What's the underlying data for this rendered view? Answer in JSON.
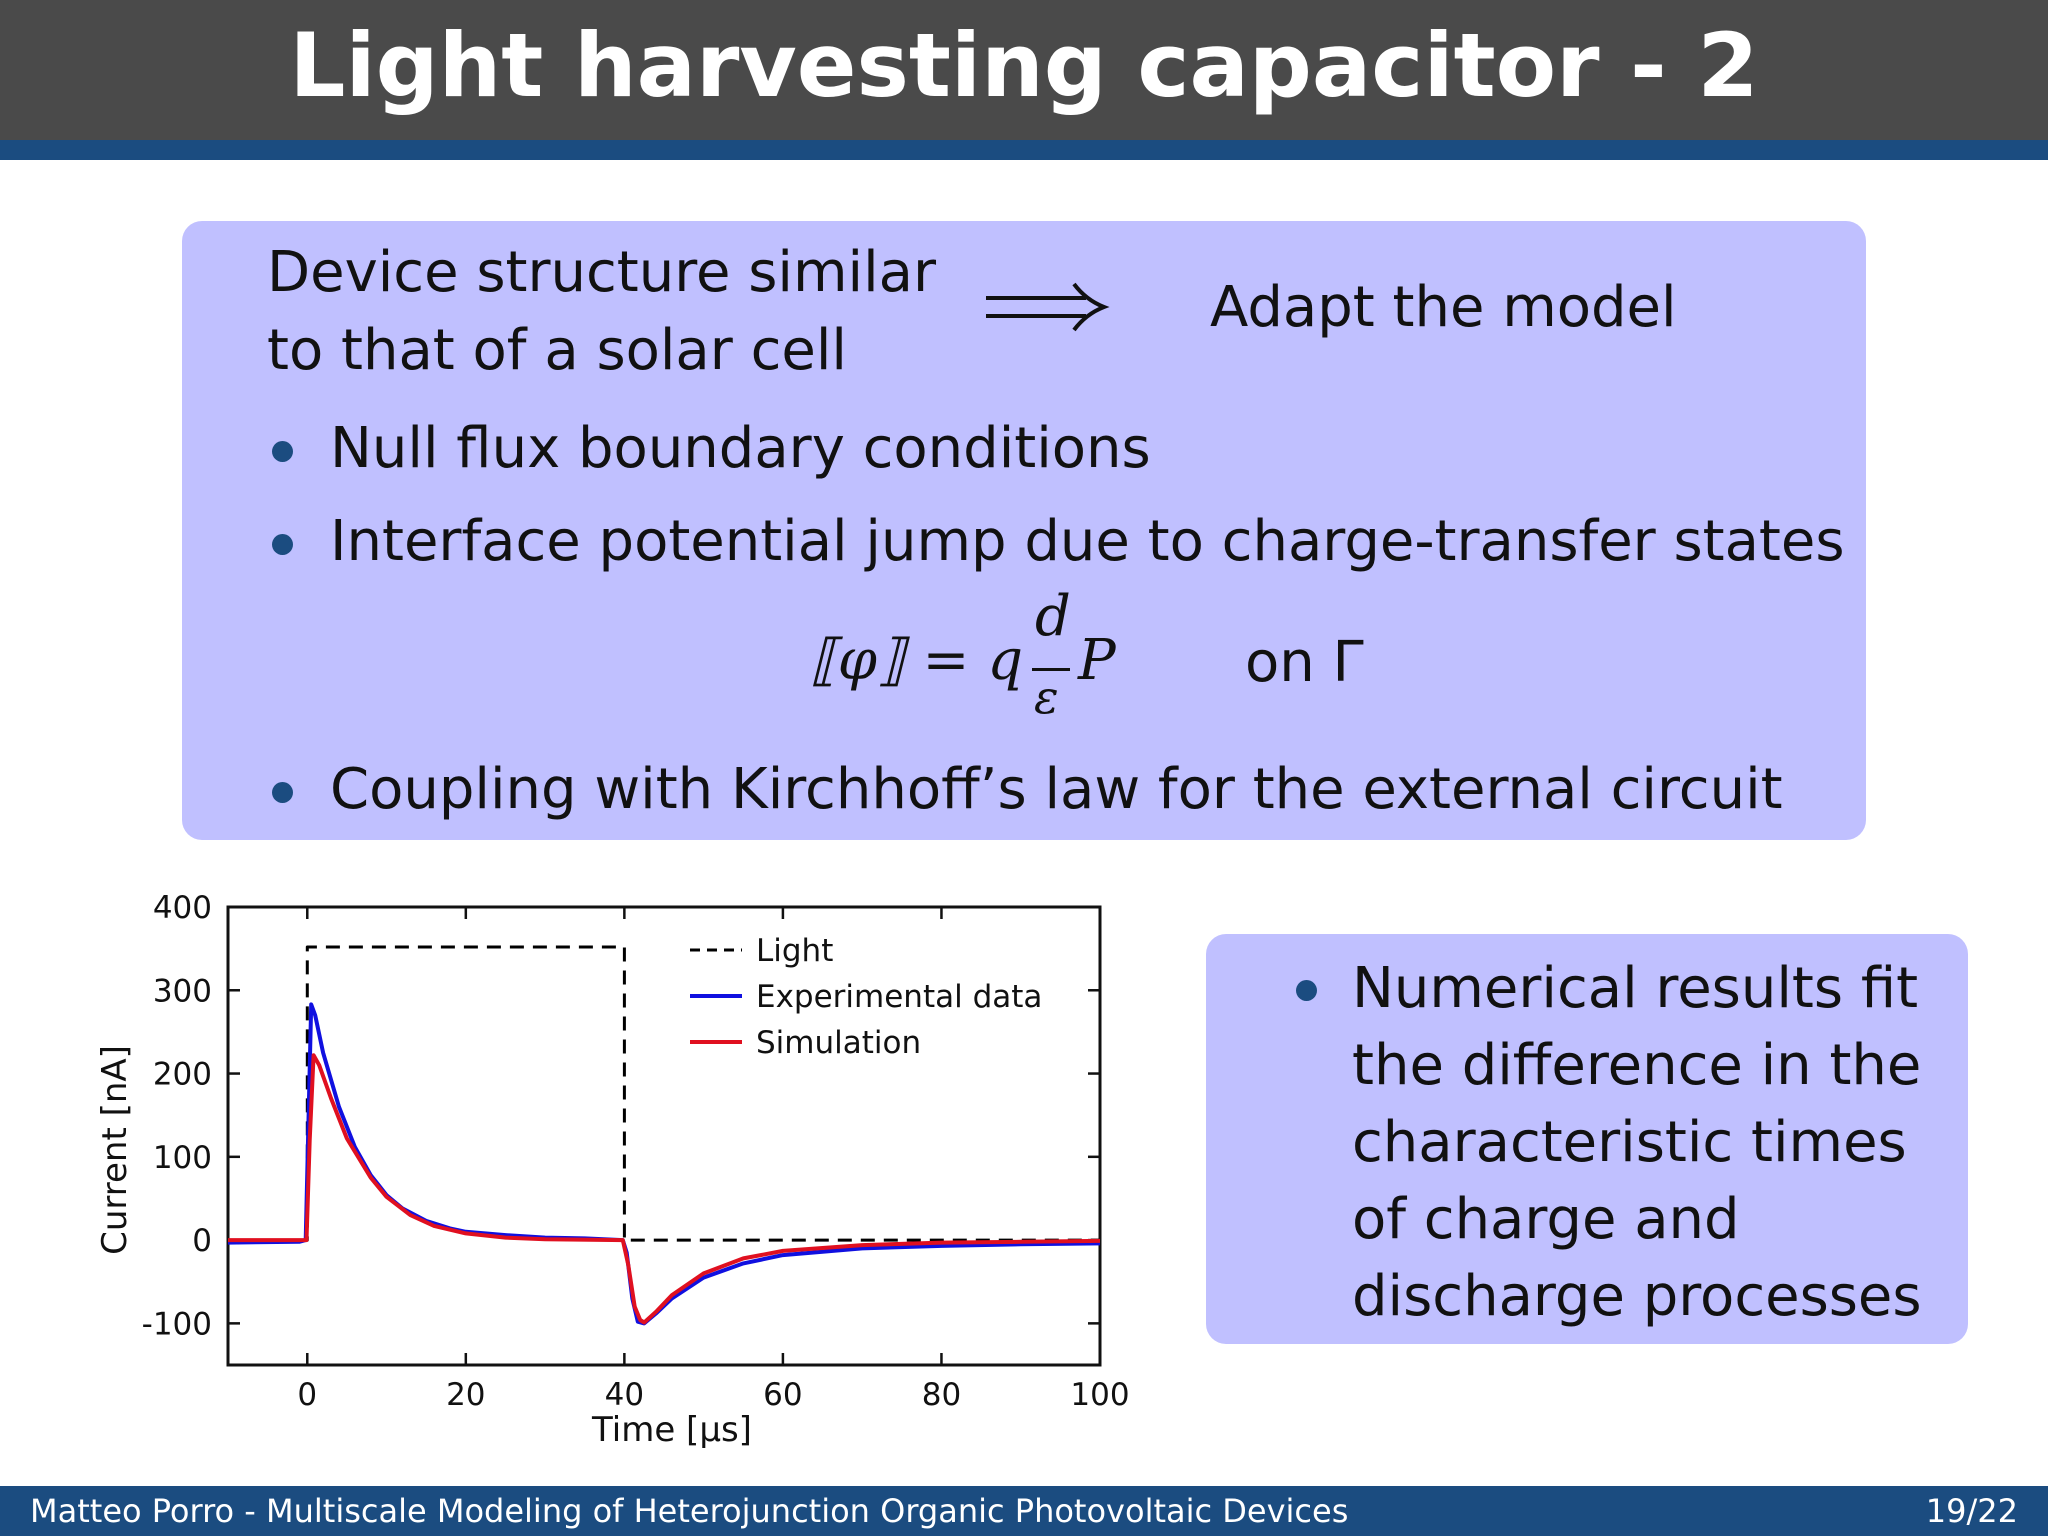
{
  "slide": {
    "title": "Light harvesting capacitor - 2"
  },
  "main_block": {
    "intro_line1": "Device structure similar",
    "intro_line2": "to that of a solar cell",
    "implication": "Adapt the model",
    "bullets": [
      "Null flux boundary conditions",
      "Interface potential jump due to charge-transfer states",
      "Coupling with Kirchhoff’s law for the external circuit"
    ],
    "formula": {
      "lhs": "⟦φ⟧ = q",
      "numerator": "d",
      "denominator": "ε",
      "variable": "P",
      "condition": "on Γ"
    }
  },
  "side_block": {
    "bullet": "Numerical results fit the difference in the characteristic times of charge and discharge processes"
  },
  "chart_data": {
    "type": "line",
    "xlabel": "Time [µs]",
    "ylabel": "Current [nA]",
    "xlim": [
      -10,
      100
    ],
    "ylim": [
      -150,
      400
    ],
    "xticks": [
      0,
      20,
      40,
      60,
      80,
      100
    ],
    "yticks": [
      -100,
      0,
      100,
      200,
      300,
      400
    ],
    "legend_position": "top-right",
    "series": [
      {
        "name": "Light",
        "style": "dashed",
        "color": "#000000",
        "points": [
          [
            -10,
            0
          ],
          [
            0,
            0
          ],
          [
            0,
            352
          ],
          [
            40,
            352
          ],
          [
            40,
            0
          ],
          [
            100,
            0
          ]
        ]
      },
      {
        "name": "Experimental data",
        "color": "#1010e0",
        "points": [
          [
            -10,
            -3
          ],
          [
            -1,
            -2
          ],
          [
            -0.2,
            0
          ],
          [
            0.5,
            283
          ],
          [
            1,
            270
          ],
          [
            2,
            225
          ],
          [
            4,
            160
          ],
          [
            6,
            112
          ],
          [
            8,
            78
          ],
          [
            10,
            54
          ],
          [
            12,
            38
          ],
          [
            15,
            23
          ],
          [
            18,
            14
          ],
          [
            20,
            10
          ],
          [
            25,
            6
          ],
          [
            30,
            3
          ],
          [
            35,
            2
          ],
          [
            39.8,
            0
          ],
          [
            40.3,
            -15
          ],
          [
            41,
            -70
          ],
          [
            41.7,
            -98
          ],
          [
            42.5,
            -100
          ],
          [
            44,
            -88
          ],
          [
            46,
            -70
          ],
          [
            50,
            -45
          ],
          [
            55,
            -28
          ],
          [
            60,
            -18
          ],
          [
            70,
            -10
          ],
          [
            80,
            -7
          ],
          [
            90,
            -5
          ],
          [
            100,
            -4
          ]
        ]
      },
      {
        "name": "Simulation",
        "color": "#e01020",
        "points": [
          [
            -10,
            0
          ],
          [
            -0.1,
            0
          ],
          [
            0.3,
            120
          ],
          [
            0.8,
            222
          ],
          [
            1.5,
            210
          ],
          [
            3,
            170
          ],
          [
            5,
            122
          ],
          [
            8,
            75
          ],
          [
            10,
            52
          ],
          [
            13,
            30
          ],
          [
            16,
            17
          ],
          [
            20,
            8
          ],
          [
            25,
            3
          ],
          [
            30,
            1
          ],
          [
            39.8,
            0
          ],
          [
            40.5,
            -30
          ],
          [
            41.3,
            -80
          ],
          [
            42,
            -96
          ],
          [
            42.5,
            -99
          ],
          [
            44,
            -86
          ],
          [
            46,
            -66
          ],
          [
            50,
            -40
          ],
          [
            55,
            -22
          ],
          [
            60,
            -13
          ],
          [
            70,
            -6
          ],
          [
            80,
            -3
          ],
          [
            90,
            -2
          ],
          [
            100,
            -1
          ]
        ]
      }
    ]
  },
  "footer": {
    "left": "Matteo Porro - Multiscale Modeling of Heterojunction Organic Photovoltaic Devices",
    "page": "19/22"
  }
}
